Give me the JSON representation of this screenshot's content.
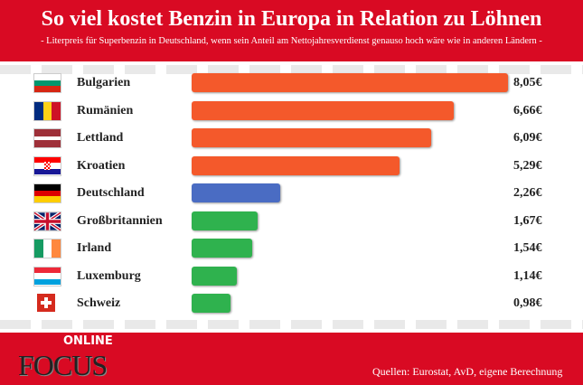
{
  "chart_data": {
    "type": "bar",
    "orientation": "horizontal",
    "title": "So viel kostet Benzin in Europa in Relation zu Löhnen",
    "subtitle": "- Literpreis für Superbenzin in Deutschland, wenn sein Anteil am Nettojahresverdienst genauso hoch wäre wie in anderen Ländern -",
    "categories": [
      "Bulgarien",
      "Rumänien",
      "Lettland",
      "Kroatien",
      "Deutschland",
      "Großbritannien",
      "Irland",
      "Luxemburg",
      "Schweiz"
    ],
    "values": [
      8.05,
      6.66,
      6.09,
      5.29,
      2.26,
      1.67,
      1.54,
      1.14,
      0.98
    ],
    "value_labels": [
      "8,05€",
      "6,66€",
      "6,09€",
      "5,29€",
      "2,26€",
      "1,67€",
      "1,54€",
      "1,14€",
      "0,98€"
    ],
    "colors": [
      "#f4592b",
      "#f4592b",
      "#f4592b",
      "#f4592b",
      "#4a6cc3",
      "#2fb24e",
      "#2fb24e",
      "#2fb24e",
      "#2fb24e"
    ],
    "unit": "€",
    "xlim": [
      0,
      8.05
    ]
  },
  "footer": {
    "logo_top": "ONLINE",
    "logo_main": "FOCUS",
    "source": "Quellen: Eurostat, AvD, eigene Berechnung"
  },
  "colors": {
    "brand_red": "#d90a23"
  }
}
